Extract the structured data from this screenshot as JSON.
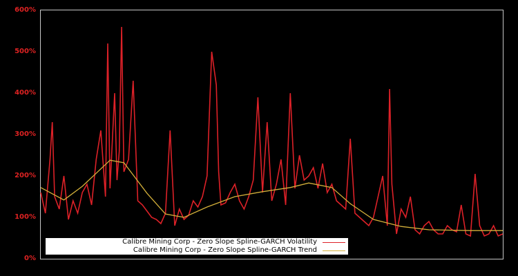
{
  "colors": {
    "background": "#000000",
    "axis_frame": "#c8c8c8",
    "volatility": "#dd2128",
    "trend": "#d4b03a",
    "tick_label": "#dd2222"
  },
  "legend": {
    "items": [
      {
        "label": "Calibre Mining Corp - Zero Slope Spline-GARCH Volatility",
        "color": "#dd2128"
      },
      {
        "label": "Calibre Mining Corp - Zero Slope Spline-GARCH Trend",
        "color": "#d4b03a"
      }
    ]
  },
  "yaxis": {
    "ticks": [
      "0%",
      "100%",
      "200%",
      "300%",
      "400%",
      "500%",
      "600%"
    ]
  },
  "chart_data": {
    "type": "line",
    "title": "",
    "xlabel": "",
    "ylabel": "",
    "ylim": [
      0,
      600
    ],
    "y_unit": "%",
    "grid": false,
    "legend_position": "lower left",
    "x_note": "no x-axis tick labels shown; x is a normalized time index 0-100",
    "series": [
      {
        "name": "Calibre Mining Corp - Zero Slope Spline-GARCH Trend",
        "x": [
          0,
          5,
          9,
          15,
          18,
          23,
          27,
          31,
          36,
          42,
          48,
          54,
          58,
          63,
          67,
          72,
          78,
          84,
          93,
          100
        ],
        "values": [
          172,
          142,
          175,
          238,
          232,
          158,
          108,
          100,
          125,
          150,
          162,
          172,
          183,
          172,
          133,
          95,
          78,
          70,
          68,
          68
        ]
      },
      {
        "name": "Calibre Mining Corp - Zero Slope Spline-GARCH Volatility",
        "x": [
          0,
          1,
          2,
          2.5,
          3,
          4,
          5,
          6,
          7,
          8,
          9,
          10,
          11,
          12,
          13,
          14,
          14.5,
          15,
          16,
          16.5,
          17,
          17.5,
          18,
          19,
          20,
          21,
          22,
          23,
          24,
          25,
          26,
          27,
          28,
          29,
          30,
          31,
          32,
          33,
          34,
          35,
          36,
          37,
          38,
          38.5,
          39,
          40,
          41,
          42,
          43,
          44,
          45,
          46,
          47,
          48,
          49,
          50,
          51,
          52,
          53,
          54,
          55,
          56,
          57,
          58,
          59,
          60,
          61,
          62,
          63,
          64,
          65,
          66,
          67,
          68,
          69,
          70,
          71,
          72,
          73,
          74,
          75,
          75.5,
          76,
          77,
          78,
          79,
          80,
          81,
          82,
          83,
          84,
          85,
          86,
          87,
          88,
          89,
          90,
          91,
          92,
          93,
          94,
          95,
          96,
          97,
          98,
          99,
          100
        ],
        "values": [
          160,
          110,
          240,
          330,
          150,
          120,
          200,
          95,
          140,
          110,
          160,
          180,
          130,
          240,
          310,
          150,
          520,
          170,
          400,
          190,
          260,
          560,
          210,
          240,
          430,
          140,
          130,
          115,
          100,
          95,
          85,
          110,
          310,
          80,
          120,
          95,
          105,
          140,
          125,
          150,
          200,
          500,
          420,
          210,
          130,
          135,
          160,
          180,
          140,
          120,
          150,
          190,
          390,
          160,
          330,
          140,
          180,
          240,
          130,
          400,
          170,
          250,
          190,
          200,
          220,
          170,
          230,
          160,
          180,
          140,
          130,
          120,
          290,
          110,
          100,
          90,
          80,
          100,
          150,
          200,
          80,
          410,
          180,
          60,
          120,
          100,
          150,
          70,
          60,
          80,
          90,
          70,
          60,
          60,
          80,
          70,
          65,
          130,
          60,
          55,
          205,
          80,
          55,
          60,
          80,
          55,
          60
        ]
      }
    ]
  }
}
